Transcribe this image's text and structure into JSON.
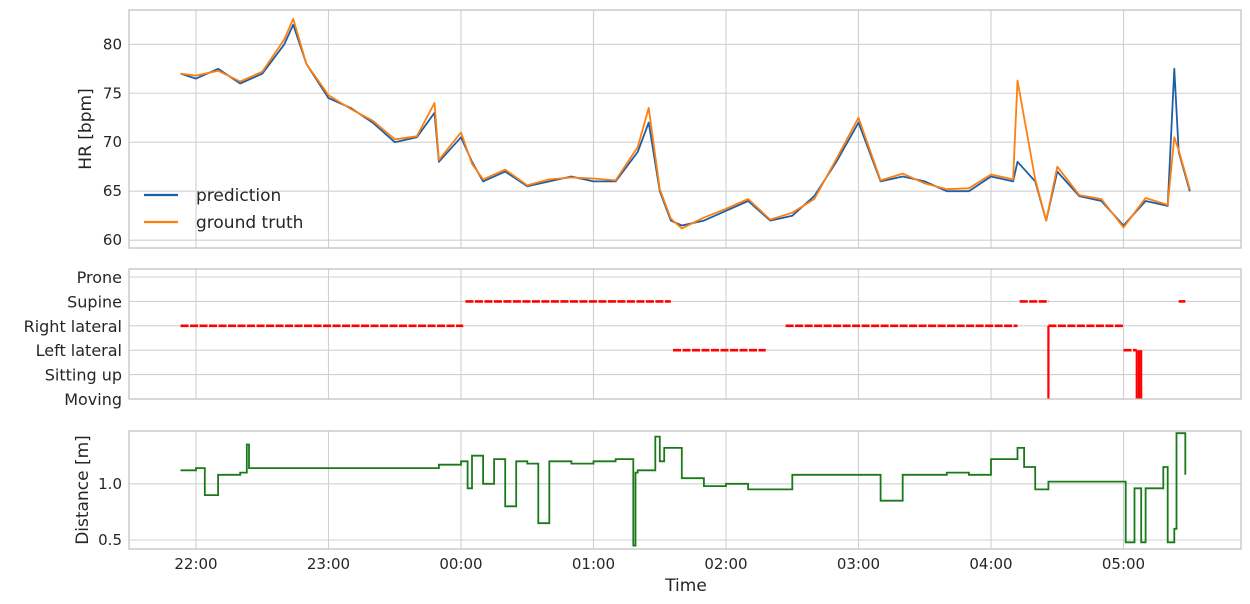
{
  "chart_data": [
    {
      "type": "line",
      "panel": "top",
      "ylabel": "HR [bpm]",
      "ylim": [
        59.2,
        83.5
      ],
      "yticks": [
        "60",
        "65",
        "70",
        "75",
        "80"
      ],
      "grid": true,
      "legend_position": "lower-left",
      "colors": {
        "prediction": "#1f5fa8",
        "ground truth": "#ff7f0e"
      },
      "series": [
        {
          "name": "prediction",
          "color": "#1f5fa8",
          "x": [
            "21:53",
            "22:00",
            "22:10",
            "22:20",
            "22:30",
            "22:40",
            "22:44",
            "22:50",
            "23:00",
            "23:10",
            "23:20",
            "23:30",
            "23:40",
            "23:48",
            "23:50",
            "00:00",
            "00:05",
            "00:10",
            "00:20",
            "00:30",
            "00:40",
            "00:50",
            "01:00",
            "01:10",
            "01:20",
            "01:25",
            "01:30",
            "01:35",
            "01:40",
            "01:50",
            "02:00",
            "02:10",
            "02:20",
            "02:30",
            "02:40",
            "02:50",
            "03:00",
            "03:10",
            "03:20",
            "03:30",
            "03:40",
            "03:50",
            "04:00",
            "04:10",
            "04:12",
            "04:20",
            "04:25",
            "04:30",
            "04:40",
            "04:50",
            "05:00",
            "05:10",
            "05:20",
            "05:23",
            "05:25",
            "05:30"
          ],
          "y": [
            77,
            76.5,
            77.5,
            76,
            77,
            80,
            82,
            78,
            74.5,
            73.5,
            72,
            70,
            70.5,
            73,
            68,
            70.5,
            68,
            66,
            67,
            65.5,
            66,
            66.5,
            66,
            66,
            69,
            72,
            65,
            62,
            61.5,
            62,
            63,
            64,
            62,
            62.5,
            64.5,
            68,
            72,
            66,
            66.5,
            66,
            65,
            65,
            66.5,
            66,
            68,
            66,
            62,
            67,
            64.5,
            64,
            61.5,
            64,
            63.5,
            77.5,
            69,
            65
          ]
        },
        {
          "name": "ground truth",
          "color": "#ff7f0e",
          "x": [
            "21:53",
            "22:00",
            "22:10",
            "22:20",
            "22:30",
            "22:40",
            "22:44",
            "22:50",
            "23:00",
            "23:10",
            "23:20",
            "23:30",
            "23:40",
            "23:48",
            "23:50",
            "00:00",
            "00:05",
            "00:10",
            "00:20",
            "00:30",
            "00:40",
            "00:50",
            "01:00",
            "01:10",
            "01:20",
            "01:25",
            "01:30",
            "01:35",
            "01:40",
            "01:50",
            "02:00",
            "02:10",
            "02:20",
            "02:30",
            "02:40",
            "02:50",
            "03:00",
            "03:10",
            "03:20",
            "03:30",
            "03:40",
            "03:50",
            "04:00",
            "04:10",
            "04:12",
            "04:20",
            "04:25",
            "04:30",
            "04:40",
            "04:50",
            "05:00",
            "05:10",
            "05:20",
            "05:23",
            "05:25",
            "05:30"
          ],
          "y": [
            77,
            76.8,
            77.3,
            76.2,
            77.2,
            80.5,
            82.6,
            78,
            74.8,
            73.4,
            72.2,
            70.3,
            70.6,
            74,
            68.2,
            71,
            67.8,
            66.2,
            67.2,
            65.6,
            66.2,
            66.4,
            66.3,
            66.1,
            69.5,
            73.5,
            65.2,
            62.2,
            61.2,
            62.3,
            63.2,
            64.2,
            62.1,
            62.8,
            64.2,
            68.3,
            72.5,
            66.1,
            66.8,
            65.8,
            65.2,
            65.3,
            66.7,
            66.2,
            76.3,
            66.2,
            62,
            67.5,
            64.6,
            64.2,
            61.3,
            64.3,
            63.6,
            70.5,
            69.2,
            65.2
          ]
        }
      ]
    },
    {
      "type": "scatter",
      "panel": "middle",
      "categories": [
        "Moving",
        "Sitting up",
        "Left lateral",
        "Right lateral",
        "Supine",
        "Prone"
      ],
      "grid": true,
      "color": "#ff0000",
      "segments": [
        {
          "start": "21:53",
          "end": "00:01",
          "value": "Right lateral"
        },
        {
          "start": "00:02",
          "end": "01:35",
          "value": "Supine"
        },
        {
          "start": "01:36",
          "end": "02:18",
          "value": "Left lateral"
        },
        {
          "start": "02:27",
          "end": "04:12",
          "value": "Right lateral"
        },
        {
          "start": "04:13",
          "end": "04:26",
          "value": "Supine"
        },
        {
          "start": "04:26",
          "end": "05:00",
          "value": "Right lateral"
        },
        {
          "start": "05:00",
          "end": "05:06",
          "value": "Left lateral"
        },
        {
          "start": "05:25",
          "end": "05:28",
          "value": "Supine"
        }
      ],
      "transitions": [
        {
          "time": "04:26",
          "from": "Moving",
          "to": "Right lateral"
        },
        {
          "time": "05:06",
          "from": "Left lateral",
          "to": "Moving"
        },
        {
          "time": "05:07",
          "from": "Left lateral",
          "to": "Moving"
        },
        {
          "time": "05:08",
          "from": "Left lateral",
          "to": "Moving"
        }
      ]
    },
    {
      "type": "line",
      "panel": "bottom",
      "xlabel": "Time",
      "ylabel": "Distance [m]",
      "ylim": [
        0.42,
        1.47
      ],
      "yticks": [
        "0.5",
        "1.0"
      ],
      "xticks": [
        "22:00",
        "23:00",
        "00:00",
        "01:00",
        "02:00",
        "03:00",
        "04:00",
        "05:00"
      ],
      "grid": true,
      "series": [
        {
          "name": "",
          "color": "#1a7a1a",
          "x": [
            "21:53",
            "22:00",
            "22:03",
            "22:04",
            "22:10",
            "22:20",
            "22:23",
            "22:24",
            "22:30",
            "22:40",
            "23:00",
            "23:10",
            "23:20",
            "23:30",
            "23:40",
            "23:50",
            "00:00",
            "00:03",
            "00:05",
            "00:10",
            "00:15",
            "00:20",
            "00:25",
            "00:30",
            "00:35",
            "00:40",
            "00:50",
            "01:00",
            "01:10",
            "01:18",
            "01:19",
            "01:20",
            "01:28",
            "01:30",
            "01:32",
            "01:40",
            "01:50",
            "02:00",
            "02:10",
            "02:20",
            "02:30",
            "02:40",
            "02:50",
            "03:00",
            "03:10",
            "03:20",
            "03:30",
            "03:40",
            "03:50",
            "04:00",
            "04:05",
            "04:10",
            "04:12",
            "04:15",
            "04:20",
            "04:26",
            "04:40",
            "04:50",
            "05:00",
            "05:01",
            "05:05",
            "05:08",
            "05:10",
            "05:18",
            "05:20",
            "05:23",
            "05:24",
            "05:28"
          ],
          "y": [
            1.12,
            1.14,
            1.14,
            0.9,
            1.08,
            1.1,
            1.35,
            1.14,
            1.14,
            1.14,
            1.14,
            1.14,
            1.14,
            1.14,
            1.14,
            1.17,
            1.2,
            0.96,
            1.25,
            1.0,
            1.22,
            0.8,
            1.2,
            1.18,
            0.65,
            1.2,
            1.18,
            1.2,
            1.22,
            0.45,
            1.1,
            1.12,
            1.42,
            1.2,
            1.32,
            1.05,
            0.98,
            1.0,
            0.95,
            0.95,
            1.08,
            1.08,
            1.08,
            1.08,
            0.85,
            1.08,
            1.08,
            1.1,
            1.08,
            1.22,
            1.22,
            1.22,
            1.32,
            1.15,
            0.95,
            1.02,
            1.02,
            1.02,
            1.02,
            0.48,
            0.96,
            0.48,
            0.96,
            1.15,
            0.48,
            0.6,
            1.45,
            1.08
          ]
        }
      ]
    }
  ],
  "axes": {
    "top": {
      "ylabel": "HR [bpm]",
      "yticks": [
        "60",
        "65",
        "70",
        "75",
        "80"
      ]
    },
    "middle": {
      "categories": [
        "Prone",
        "Supine",
        "Right lateral",
        "Left lateral",
        "Sitting up",
        "Moving"
      ]
    },
    "bottom": {
      "ylabel": "Distance [m]",
      "yticks": [
        "0.5",
        "1.0"
      ],
      "xlabel": "Time",
      "xticks": [
        "22:00",
        "23:00",
        "00:00",
        "01:00",
        "02:00",
        "03:00",
        "04:00",
        "05:00"
      ]
    }
  },
  "legend": {
    "prediction": "prediction",
    "ground_truth": "ground truth"
  }
}
